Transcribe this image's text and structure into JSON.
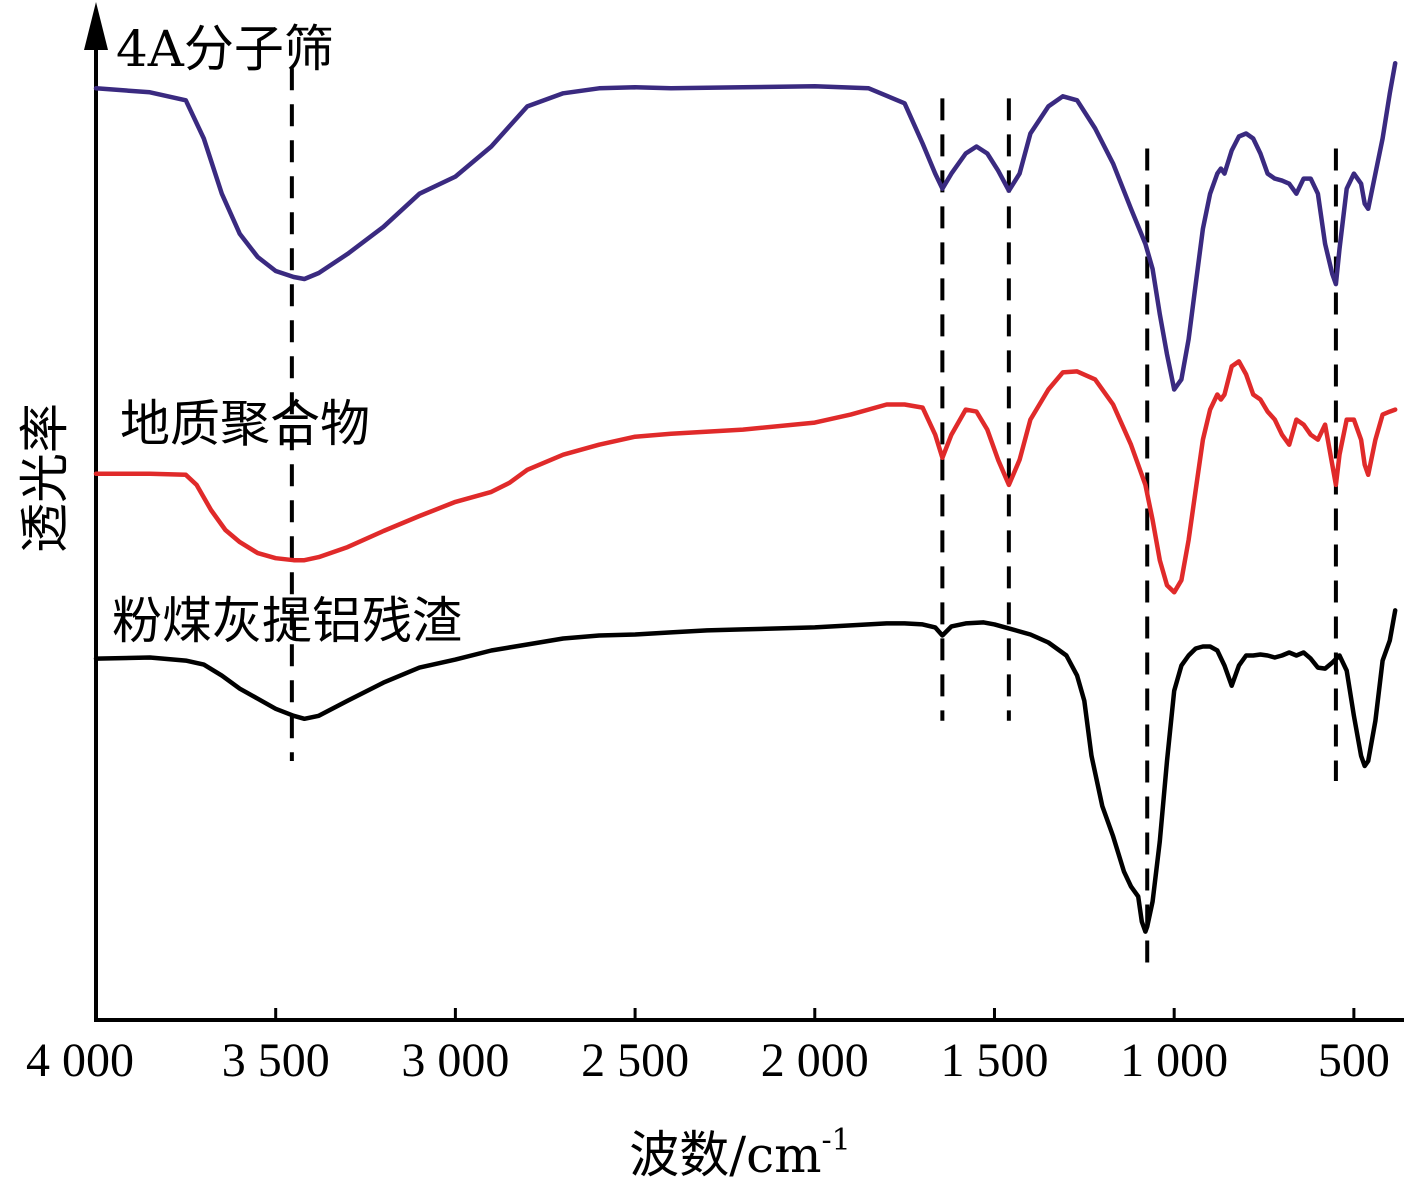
{
  "chart_data": {
    "type": "line",
    "xlabel": "波数/cm",
    "xlabel_sup": "-1",
    "ylabel": "透光率",
    "xlim": [
      4000,
      380
    ],
    "xticks": [
      {
        "value": 4000,
        "label": "4 000"
      },
      {
        "value": 3500,
        "label": "3 500"
      },
      {
        "value": 3000,
        "label": "3 000"
      },
      {
        "value": 2500,
        "label": "2 500"
      },
      {
        "value": 2000,
        "label": "2 000"
      },
      {
        "value": 1500,
        "label": "1 500"
      },
      {
        "value": 1000,
        "label": "1 000"
      },
      {
        "value": 500,
        "label": "500"
      }
    ],
    "ylim": [
      0,
      100
    ],
    "grid": false,
    "reference_lines": [
      {
        "x": 3455,
        "y_from": 26,
        "y_to": 95
      },
      {
        "x": 1645,
        "y_from": 30,
        "y_to": 92
      },
      {
        "x": 1460,
        "y_from": 30,
        "y_to": 92
      },
      {
        "x": 1075,
        "y_from": 5,
        "y_to": 87
      },
      {
        "x": 550,
        "y_from": 24,
        "y_to": 87
      }
    ],
    "series": [
      {
        "name": "4A分子筛",
        "color": "#3a2a80",
        "x": [
          4000,
          3850,
          3750,
          3700,
          3650,
          3600,
          3550,
          3500,
          3450,
          3420,
          3380,
          3300,
          3200,
          3100,
          3000,
          2900,
          2850,
          2800,
          2700,
          2600,
          2500,
          2400,
          2200,
          2000,
          1850,
          1750,
          1700,
          1665,
          1645,
          1620,
          1580,
          1550,
          1520,
          1490,
          1460,
          1430,
          1400,
          1350,
          1310,
          1270,
          1220,
          1170,
          1120,
          1080,
          1060,
          1040,
          1020,
          1000,
          980,
          960,
          940,
          920,
          900,
          880,
          870,
          860,
          840,
          820,
          800,
          780,
          760,
          740,
          720,
          700,
          680,
          660,
          640,
          620,
          600,
          580,
          560,
          550,
          540,
          520,
          500,
          480,
          470,
          460,
          440,
          420,
          400,
          385
        ],
        "y": [
          93,
          92.6,
          91.8,
          88,
          82.5,
          78.5,
          76.2,
          74.8,
          74.2,
          74,
          74.6,
          76.5,
          79.2,
          82.5,
          84.2,
          87.2,
          89.2,
          91.2,
          92.5,
          93,
          93.1,
          93,
          93.1,
          93.2,
          93,
          91.5,
          87.5,
          84.5,
          83,
          84.5,
          86.5,
          87.2,
          86.5,
          84.8,
          82.8,
          84.5,
          88.5,
          91.2,
          92.2,
          91.8,
          89,
          85.5,
          81,
          77.5,
          75,
          70.5,
          66.5,
          63,
          64,
          68,
          73.5,
          79,
          82.5,
          84.5,
          85,
          84.5,
          86.8,
          88.2,
          88.5,
          88,
          86.5,
          84.5,
          84,
          83.8,
          83.5,
          82.5,
          84,
          84,
          82.5,
          77.5,
          74.5,
          73.5,
          77,
          83,
          84.5,
          83.5,
          81.5,
          81,
          84.5,
          88,
          92.5,
          95.5
        ]
      },
      {
        "name": "地质聚合物",
        "color": "#e02a2a",
        "x": [
          4000,
          3850,
          3750,
          3720,
          3680,
          3640,
          3600,
          3550,
          3500,
          3450,
          3420,
          3380,
          3300,
          3200,
          3100,
          3000,
          2900,
          2850,
          2800,
          2700,
          2600,
          2500,
          2400,
          2200,
          2000,
          1900,
          1800,
          1750,
          1700,
          1665,
          1645,
          1620,
          1580,
          1550,
          1520,
          1490,
          1460,
          1430,
          1400,
          1350,
          1310,
          1270,
          1220,
          1170,
          1120,
          1080,
          1060,
          1040,
          1020,
          1000,
          980,
          960,
          940,
          920,
          900,
          880,
          870,
          860,
          840,
          820,
          800,
          780,
          760,
          740,
          720,
          700,
          680,
          660,
          640,
          620,
          600,
          580,
          560,
          550,
          540,
          520,
          500,
          480,
          470,
          460,
          440,
          420,
          400,
          385
        ],
        "y": [
          54.6,
          54.6,
          54.5,
          53.5,
          51,
          49,
          47.8,
          46.7,
          46.2,
          46,
          46,
          46.3,
          47.3,
          48.9,
          50.4,
          51.8,
          52.8,
          53.7,
          55,
          56.5,
          57.5,
          58.3,
          58.6,
          59,
          59.7,
          60.5,
          61.5,
          61.5,
          61.2,
          58.5,
          56.2,
          58.5,
          61,
          60.8,
          59,
          56,
          53.5,
          56,
          60,
          63,
          64.7,
          64.8,
          64,
          61.5,
          57.5,
          53.5,
          50,
          46,
          43.5,
          42.8,
          44,
          48,
          53,
          58,
          61,
          62.5,
          62,
          62.5,
          65.3,
          65.8,
          64.5,
          62.5,
          62,
          60.8,
          60,
          58.5,
          57.5,
          60,
          59.5,
          58.5,
          58,
          59.5,
          55.5,
          53.5,
          56.5,
          60,
          60,
          58,
          55.5,
          54.5,
          58,
          60.5,
          60.8,
          61
        ]
      },
      {
        "name": "粉煤灰提铝残渣",
        "color": "#000000",
        "x": [
          4000,
          3850,
          3750,
          3700,
          3650,
          3600,
          3550,
          3500,
          3450,
          3420,
          3380,
          3300,
          3200,
          3100,
          3000,
          2900,
          2800,
          2700,
          2600,
          2500,
          2400,
          2300,
          2200,
          2000,
          1900,
          1850,
          1800,
          1750,
          1700,
          1665,
          1645,
          1620,
          1580,
          1530,
          1500,
          1460,
          1400,
          1350,
          1300,
          1270,
          1250,
          1230,
          1200,
          1170,
          1140,
          1120,
          1100,
          1090,
          1080,
          1075,
          1060,
          1040,
          1020,
          1000,
          980,
          960,
          940,
          920,
          900,
          880,
          860,
          840,
          820,
          800,
          780,
          760,
          740,
          720,
          700,
          680,
          660,
          640,
          620,
          600,
          580,
          560,
          540,
          520,
          500,
          480,
          470,
          460,
          440,
          420,
          400,
          385
        ],
        "y": [
          36.2,
          36.3,
          36,
          35.6,
          34.5,
          33.2,
          32.2,
          31.2,
          30.5,
          30.2,
          30.5,
          32,
          33.8,
          35.3,
          36.1,
          37,
          37.6,
          38.2,
          38.5,
          38.6,
          38.8,
          39,
          39.1,
          39.3,
          39.5,
          39.6,
          39.7,
          39.7,
          39.6,
          39.3,
          38.5,
          39.4,
          39.7,
          39.8,
          39.6,
          39.2,
          38.6,
          37.8,
          36.5,
          34.5,
          32,
          26.5,
          21.5,
          18.5,
          15,
          13.5,
          12.5,
          10,
          9,
          9.5,
          12,
          18,
          26,
          33,
          35.5,
          36.5,
          37.2,
          37.4,
          37.4,
          37,
          35.5,
          33.5,
          35.5,
          36.5,
          36.5,
          36.6,
          36.5,
          36.3,
          36.5,
          36.8,
          36.5,
          36.8,
          36.2,
          35.3,
          35.2,
          35.8,
          36.5,
          35,
          30.5,
          26.5,
          25.5,
          26,
          30,
          36,
          38,
          41
        ]
      }
    ]
  }
}
